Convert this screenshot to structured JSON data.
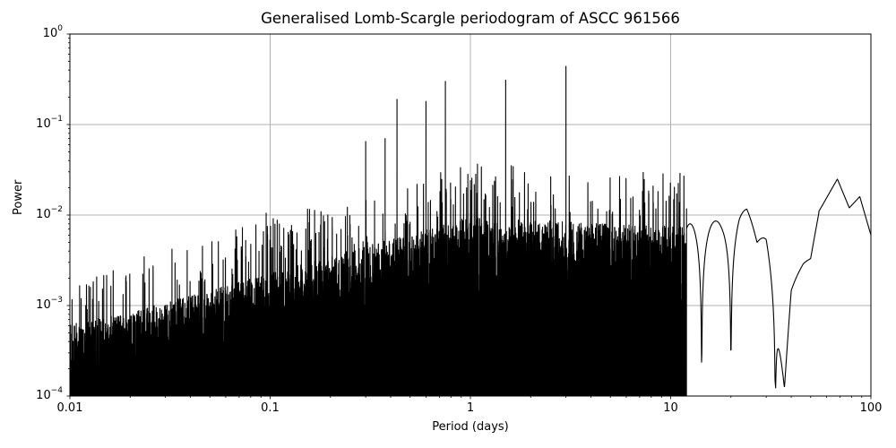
{
  "chart_data": {
    "type": "line",
    "title": "Generalised Lomb-Scargle periodogram of ASCC 961566",
    "xlabel": "Period (days)",
    "ylabel": "Power",
    "xscale": "log",
    "yscale": "log",
    "xlim": [
      0.01,
      100
    ],
    "ylim": [
      0.0001,
      1
    ],
    "grid": true,
    "legend": null,
    "x_ticks": [
      {
        "value": 0.01,
        "label": "0.01"
      },
      {
        "value": 0.1,
        "label": "0.1"
      },
      {
        "value": 1,
        "label": "1"
      },
      {
        "value": 10,
        "label": "10"
      },
      {
        "value": 100,
        "label": "100"
      }
    ],
    "y_ticks": [
      {
        "value": 1,
        "base": "10",
        "exp": "0"
      },
      {
        "value": 0.1,
        "base": "10",
        "exp": "−1"
      },
      {
        "value": 0.01,
        "base": "10",
        "exp": "−2"
      },
      {
        "value": 0.001,
        "base": "10",
        "exp": "−3"
      },
      {
        "value": 0.0001,
        "base": "10",
        "exp": "−4"
      }
    ],
    "line_color": "#000000",
    "grid_color": "#b0b0b0",
    "notable_peaks": [
      {
        "period": 3.0,
        "power": 0.44
      },
      {
        "period": 1.5,
        "power": 0.31
      },
      {
        "period": 0.75,
        "power": 0.3
      },
      {
        "period": 0.6,
        "power": 0.18
      },
      {
        "period": 0.43,
        "power": 0.19
      },
      {
        "period": 0.375,
        "power": 0.07
      },
      {
        "period": 0.3,
        "power": 0.065
      },
      {
        "period": 1.0,
        "power": 0.024
      },
      {
        "period": 0.012,
        "power": 0.001
      }
    ],
    "long_period_envelope": [
      {
        "period": 15,
        "power": 0.008
      },
      {
        "period": 18,
        "power": 0.009
      },
      {
        "period": 22,
        "power": 0.013
      },
      {
        "period": 24,
        "power": 0.012
      },
      {
        "period": 27,
        "power": 0.0055
      },
      {
        "period": 30,
        "power": 0.01
      },
      {
        "period": 33,
        "power": 0.006
      },
      {
        "period": 37,
        "power": 0.00025
      },
      {
        "period": 40,
        "power": 0.002
      },
      {
        "period": 46,
        "power": 0.003
      },
      {
        "period": 50,
        "power": 0.0033
      },
      {
        "period": 55,
        "power": 0.011
      },
      {
        "period": 68,
        "power": 0.025
      },
      {
        "period": 78,
        "power": 0.012
      },
      {
        "period": 88,
        "power": 0.016
      },
      {
        "period": 100,
        "power": 0.006
      }
    ]
  }
}
